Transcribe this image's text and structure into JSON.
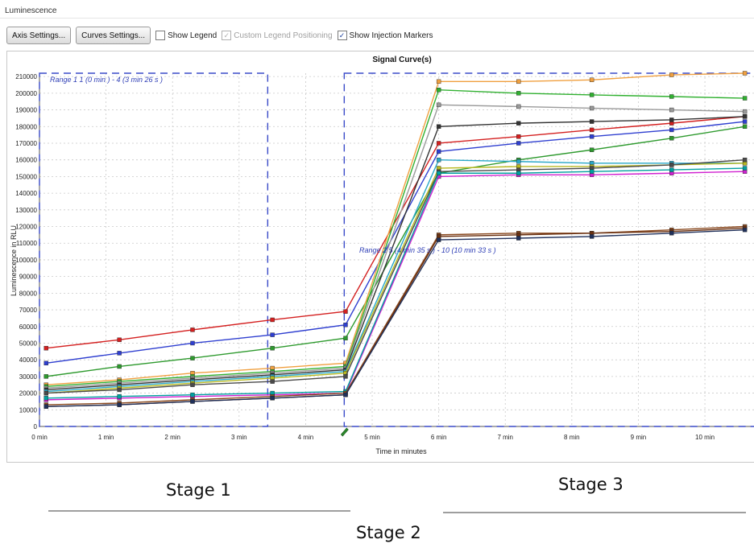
{
  "window": {
    "title": "Luminescence"
  },
  "toolbar": {
    "axis_settings": "Axis Settings...",
    "curves_settings": "Curves Settings...",
    "show_legend": {
      "label": "Show Legend",
      "checked": false
    },
    "custom_legend": {
      "label": "Custom Legend Positioning",
      "checked": true,
      "disabled": true
    },
    "show_injection": {
      "label": "Show Injection Markers",
      "checked": true
    }
  },
  "annotations": {
    "range1": "Range 1 1 (0 min ) - 4 (3 min 26 s )",
    "range2": "Range 2 5 (4 min 35 s ) - 10 (10 min 33 s )",
    "stage1": "Stage 1",
    "stage2": "Stage 2",
    "stage3": "Stage 3"
  },
  "chart_data": {
    "type": "line",
    "title": "Signal Curve(s)",
    "xlabel": "Time in minutes",
    "ylabel": "Luminescence in RLU",
    "xlim": [
      0,
      10.75
    ],
    "ylim": [
      0,
      212000
    ],
    "x_ticks": [
      0,
      1,
      2,
      3,
      4,
      5,
      6,
      7,
      8,
      9,
      10
    ],
    "x_tick_labels": [
      "0 min",
      "1 min",
      "2 min",
      "3 min",
      "4 min",
      "5 min",
      "6 min",
      "7 min",
      "8 min",
      "9 min",
      "10 min"
    ],
    "y_ticks": [
      0,
      10000,
      20000,
      30000,
      40000,
      50000,
      60000,
      70000,
      80000,
      90000,
      100000,
      110000,
      120000,
      130000,
      140000,
      150000,
      160000,
      170000,
      180000,
      190000,
      200000,
      210000
    ],
    "grid": true,
    "legend": "none",
    "range_markers": [
      {
        "x_start": 0,
        "x_end": 3.43
      },
      {
        "x_start": 4.58,
        "x_end": 10.75
      }
    ],
    "injection_marker_x": 4.58,
    "x": [
      0.1,
      1.2,
      2.3,
      3.5,
      4.6,
      6.0,
      7.2,
      8.3,
      9.5,
      10.6
    ],
    "series": [
      {
        "color": "#d42020",
        "values": [
          47000,
          52000,
          58000,
          64000,
          69000,
          170000,
          174000,
          178000,
          182000,
          186000
        ]
      },
      {
        "color": "#2f3fd0",
        "values": [
          38000,
          44000,
          50000,
          55000,
          61000,
          165000,
          170000,
          174000,
          178000,
          183000
        ]
      },
      {
        "color": "#2e9a2e",
        "values": [
          30000,
          36000,
          41000,
          47000,
          53000,
          152000,
          160000,
          166000,
          173000,
          180000
        ]
      },
      {
        "color": "#f0a040",
        "values": [
          25000,
          28000,
          32000,
          35000,
          38000,
          207000,
          207000,
          208000,
          211000,
          212000
        ]
      },
      {
        "color": "#30b030",
        "values": [
          24000,
          27000,
          30000,
          33000,
          36000,
          202000,
          200000,
          199000,
          198000,
          197000
        ]
      },
      {
        "color": "#9a9a9a",
        "values": [
          23000,
          26000,
          29000,
          32000,
          35000,
          193000,
          192000,
          191000,
          190000,
          189000
        ]
      },
      {
        "color": "#333333",
        "values": [
          22000,
          25000,
          28000,
          31000,
          34000,
          180000,
          182000,
          183000,
          184000,
          186000
        ]
      },
      {
        "color": "#2aa8c8",
        "values": [
          21000,
          24000,
          27000,
          30000,
          33000,
          160000,
          159000,
          158000,
          158000,
          158000
        ]
      },
      {
        "color": "#b8b820",
        "values": [
          20000,
          23000,
          26000,
          29000,
          32000,
          155000,
          156000,
          156000,
          157000,
          158000
        ]
      },
      {
        "color": "#4a4a4a",
        "values": [
          20000,
          22000,
          25000,
          27000,
          30000,
          153000,
          154000,
          155000,
          157000,
          160000
        ]
      },
      {
        "color": "#d020d0",
        "values": [
          16000,
          17000,
          18000,
          19000,
          20000,
          150000,
          151000,
          151000,
          152000,
          153000
        ]
      },
      {
        "color": "#00a0a0",
        "values": [
          17000,
          18000,
          19000,
          20000,
          21000,
          152000,
          152000,
          153000,
          154000,
          155000
        ]
      },
      {
        "color": "#8a4a20",
        "values": [
          13000,
          14000,
          16000,
          18000,
          20000,
          115000,
          116000,
          116000,
          118000,
          120000
        ]
      },
      {
        "color": "#6a3010",
        "values": [
          12000,
          13000,
          15000,
          17000,
          19000,
          114000,
          115000,
          116000,
          117000,
          119000
        ]
      },
      {
        "color": "#20305a",
        "values": [
          12000,
          13000,
          15000,
          17000,
          19000,
          112000,
          113000,
          114000,
          116000,
          118000
        ]
      }
    ]
  }
}
